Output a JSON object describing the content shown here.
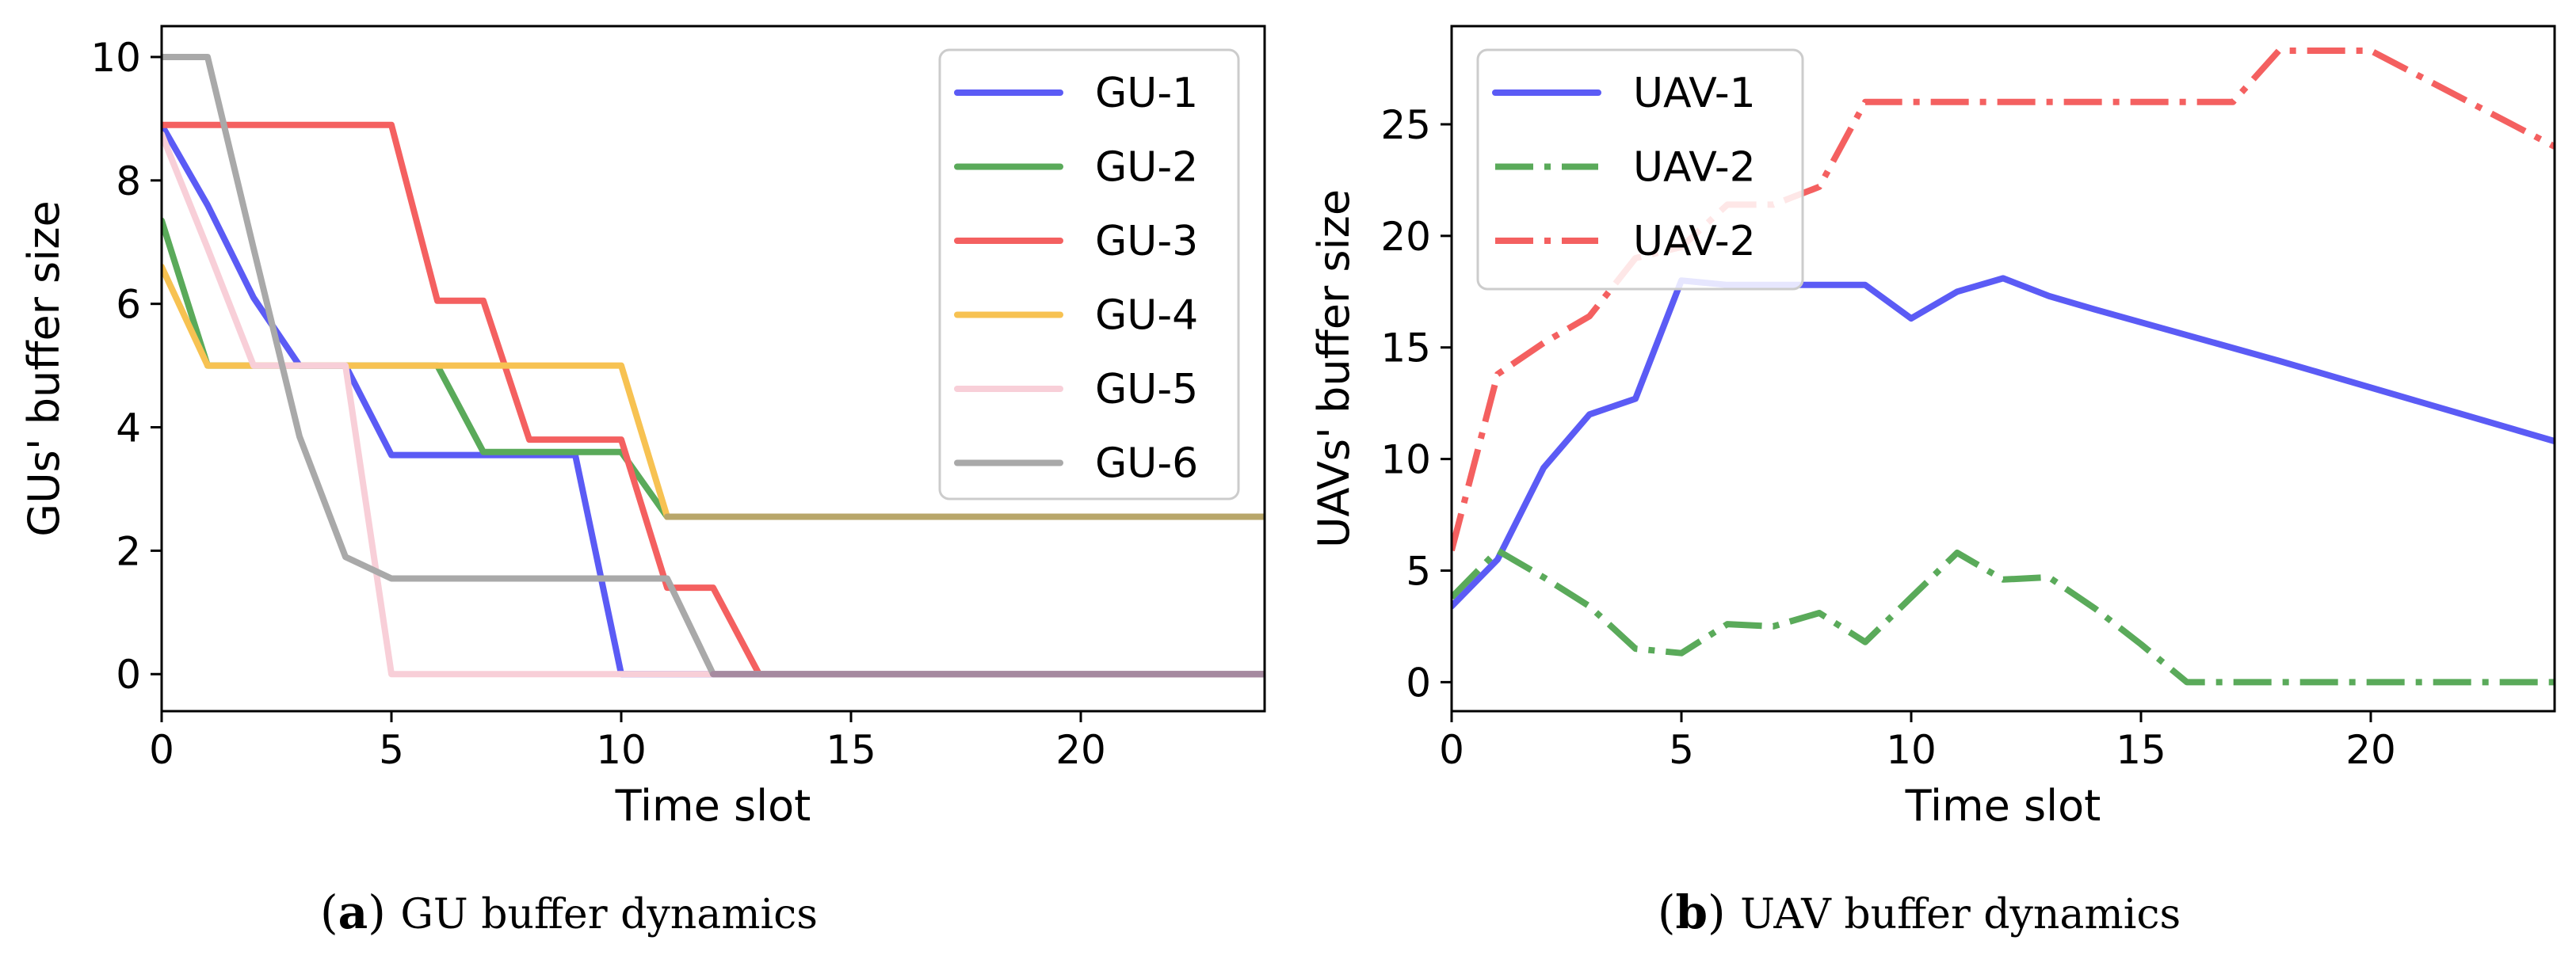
{
  "chart_data": [
    {
      "type": "line",
      "id": "gu",
      "title": "",
      "xlabel": "Time slot",
      "ylabel": "GUs' buffer size",
      "xlim": [
        0,
        24
      ],
      "ylim": [
        -0.6,
        10.5
      ],
      "xticks": [
        0,
        5,
        10,
        15,
        20
      ],
      "yticks": [
        0,
        2,
        4,
        6,
        8,
        10
      ],
      "grid": false,
      "legend_position": "top-right",
      "caption": {
        "letter": "a",
        "text": "GU buffer dynamics"
      },
      "series": [
        {
          "name": "GU-1",
          "color": "#5b5bf5",
          "dash": "solid",
          "opacity": 1,
          "x": [
            0,
            1,
            2,
            3,
            4,
            5,
            6,
            7,
            8,
            9,
            10,
            11,
            12,
            13,
            24
          ],
          "y": [
            8.9,
            7.6,
            6.1,
            5.0,
            5.0,
            3.55,
            3.55,
            3.55,
            3.55,
            3.55,
            0,
            0,
            0,
            0,
            0
          ]
        },
        {
          "name": "GU-2",
          "color": "#5aaa5a",
          "dash": "solid",
          "opacity": 1,
          "x": [
            0,
            1,
            2,
            3,
            4,
            5,
            6,
            7,
            8,
            9,
            10,
            11,
            24
          ],
          "y": [
            7.35,
            5.0,
            5.0,
            5.0,
            5.0,
            5.0,
            5.0,
            3.6,
            3.6,
            3.6,
            3.6,
            2.55,
            2.55
          ]
        },
        {
          "name": "GU-3",
          "color": "#f46060",
          "dash": "solid",
          "opacity": 1,
          "x": [
            0,
            1,
            2,
            3,
            4,
            5,
            6,
            7,
            8,
            9,
            10,
            11,
            12,
            13,
            24
          ],
          "y": [
            8.9,
            8.9,
            8.9,
            8.9,
            8.9,
            8.9,
            6.05,
            6.05,
            3.8,
            3.8,
            3.8,
            1.4,
            1.4,
            0,
            0
          ]
        },
        {
          "name": "GU-4",
          "color": "#f7c252",
          "dash": "solid",
          "opacity": 1,
          "x": [
            0,
            1,
            2,
            3,
            4,
            5,
            6,
            7,
            8,
            9,
            10,
            11,
            24
          ],
          "y": [
            6.6,
            5.0,
            5.0,
            5.0,
            5.0,
            5.0,
            5.0,
            5.0,
            5.0,
            5.0,
            5.0,
            2.55,
            2.55
          ]
        },
        {
          "name": "GU-5",
          "color": "#f8cfd8",
          "dash": "solid",
          "opacity": 1,
          "x": [
            0,
            1,
            2,
            3,
            4,
            5,
            24
          ],
          "y": [
            8.75,
            6.9,
            5.0,
            5.0,
            5.0,
            0,
            0
          ]
        },
        {
          "name": "GU-6",
          "color": "#a9a9a9",
          "dash": "solid",
          "opacity": 1,
          "x": [
            0,
            1,
            2,
            3,
            4,
            5,
            6,
            7,
            8,
            9,
            10,
            11,
            12,
            24
          ],
          "y": [
            10.0,
            10.0,
            6.9,
            3.85,
            1.9,
            1.55,
            1.55,
            1.55,
            1.55,
            1.55,
            1.55,
            1.55,
            0,
            0
          ]
        },
        {
          "name": "",
          "color": "#b8a66a",
          "dash": "solid",
          "opacity": 1,
          "overlay": true,
          "x": [
            11,
            24
          ],
          "y": [
            2.55,
            2.55
          ]
        },
        {
          "name": "",
          "color": "#a68aa0",
          "dash": "solid",
          "opacity": 1,
          "overlay": true,
          "x": [
            12,
            24
          ],
          "y": [
            0,
            0
          ]
        }
      ]
    },
    {
      "type": "line",
      "id": "uav",
      "title": "",
      "xlabel": "Time slot",
      "ylabel": "UAVs' buffer size",
      "xlim": [
        0,
        24
      ],
      "ylim": [
        -1.3,
        29.4
      ],
      "xticks": [
        0,
        5,
        10,
        15,
        20
      ],
      "yticks": [
        0,
        5,
        10,
        15,
        20,
        25
      ],
      "grid": false,
      "legend_position": "top-left",
      "caption": {
        "letter": "b",
        "text": "UAV buffer dynamics"
      },
      "series": [
        {
          "name": "UAV-1",
          "color": "#5b5bf5",
          "dash": "solid",
          "opacity": 1,
          "x": [
            0,
            1,
            2,
            3,
            4,
            5,
            6,
            7,
            8,
            9,
            10,
            11,
            12,
            13,
            14,
            18,
            24
          ],
          "y": [
            3.4,
            5.5,
            9.6,
            12.0,
            12.7,
            18.0,
            17.8,
            17.8,
            17.8,
            17.8,
            16.3,
            17.5,
            18.1,
            17.3,
            16.7,
            14.4,
            10.8
          ]
        },
        {
          "name": "UAV-2",
          "color": "#5aaa5a",
          "dash": "dashdot",
          "opacity": 1,
          "x": [
            0,
            1,
            2,
            3,
            4,
            5,
            6,
            7,
            8,
            9,
            10,
            11,
            12,
            13,
            14,
            15,
            16,
            24
          ],
          "y": [
            3.8,
            5.9,
            4.7,
            3.4,
            1.5,
            1.3,
            2.6,
            2.5,
            3.1,
            1.8,
            3.8,
            5.8,
            4.6,
            4.7,
            3.3,
            1.7,
            0,
            0
          ]
        },
        {
          "name": "UAV-2",
          "color": "#f46060",
          "dash": "dashdot",
          "opacity": 1,
          "x": [
            0,
            1,
            2,
            3,
            4,
            5,
            6,
            7,
            8,
            9,
            10,
            11,
            12,
            13,
            14,
            15,
            16,
            17,
            18,
            19,
            20,
            24
          ],
          "y": [
            5.9,
            13.8,
            15.2,
            16.4,
            19.0,
            19.5,
            21.4,
            21.4,
            22.2,
            26.0,
            26.0,
            26.0,
            26.0,
            26.0,
            26.0,
            26.0,
            26.0,
            26.0,
            28.3,
            28.3,
            28.3,
            24.0
          ]
        }
      ]
    }
  ]
}
